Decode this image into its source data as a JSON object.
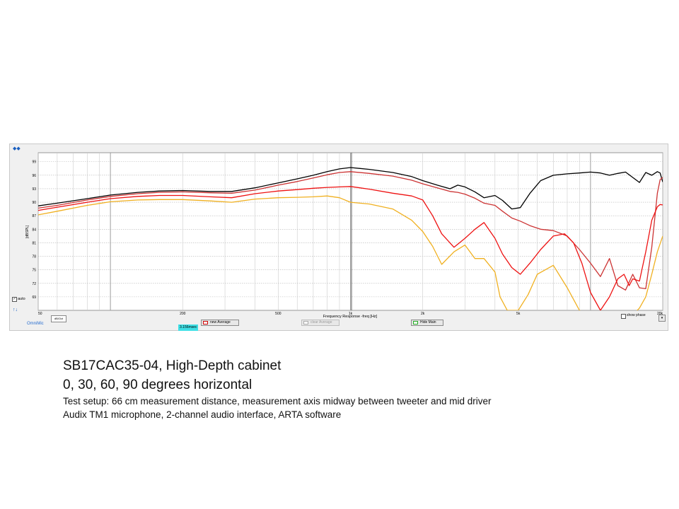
{
  "app": {
    "brand": "OmniMic",
    "auto_label": "auto",
    "auto_checked": true,
    "time_readout": "3.156msec",
    "buttons": {
      "new_average": "new Average",
      "clear_average": "clear Average",
      "hide_main": "Hide Main"
    },
    "show_phase_label": "show phase",
    "small_field_text": "dB/Oct"
  },
  "chart_data": {
    "type": "line",
    "title": "",
    "xlabel": "Frequency Response -freq [Hz]",
    "ylabel": "[dBSPL]",
    "x_scale": "log",
    "xlim": [
      50,
      20000
    ],
    "ylim": [
      66,
      101
    ],
    "x_ticks": [
      {
        "value": 50,
        "label": "50"
      },
      {
        "value": 200,
        "label": "200"
      },
      {
        "value": 500,
        "label": "500"
      },
      {
        "value": 1000,
        "label": "1k"
      },
      {
        "value": 2000,
        "label": "2k"
      },
      {
        "value": 5000,
        "label": "5k"
      },
      {
        "value": 20000,
        "label": "20k"
      }
    ],
    "y_ticks": [
      69,
      72,
      75,
      78,
      81,
      84,
      87,
      90,
      93,
      96,
      99
    ],
    "grid": true,
    "series": [
      {
        "name": "",
        "color": "#000000",
        "x": [
          50,
          60,
          80,
          100,
          130,
          160,
          200,
          260,
          320,
          400,
          500,
          600,
          700,
          800,
          900,
          1000,
          1200,
          1500,
          1800,
          2000,
          2300,
          2600,
          2800,
          3000,
          3300,
          3600,
          4000,
          4300,
          4700,
          5100,
          5600,
          6200,
          7000,
          8000,
          9000,
          10000,
          11000,
          12000,
          13000,
          14000,
          15000,
          16000,
          17000,
          18000,
          19000,
          19500,
          20000
        ],
        "y": [
          89.2,
          89.8,
          90.8,
          91.6,
          92.2,
          92.5,
          92.6,
          92.4,
          92.4,
          93.2,
          94.3,
          95.2,
          96.0,
          96.8,
          97.4,
          97.7,
          97.3,
          96.6,
          95.7,
          94.8,
          93.8,
          93.0,
          93.8,
          93.4,
          92.3,
          91.0,
          91.5,
          90.4,
          88.5,
          88.8,
          92.0,
          94.8,
          96.0,
          96.3,
          96.5,
          96.7,
          96.5,
          96.0,
          96.4,
          96.7,
          95.5,
          94.4,
          96.6,
          96.0,
          96.8,
          96.5,
          94.5
        ]
      },
      {
        "name": "",
        "color": "#cc3333",
        "x": [
          50,
          60,
          80,
          100,
          130,
          160,
          200,
          260,
          320,
          400,
          500,
          600,
          700,
          800,
          900,
          1000,
          1200,
          1500,
          1800,
          2000,
          2300,
          2600,
          2800,
          3000,
          3300,
          3600,
          4000,
          4300,
          4700,
          5100,
          5600,
          6200,
          7000,
          8000,
          9000,
          10000,
          11000,
          12000,
          13000,
          14000,
          15000,
          16000,
          17000,
          18000,
          19000,
          19500,
          20000
        ],
        "y": [
          88.7,
          89.3,
          90.5,
          91.3,
          91.9,
          92.2,
          92.3,
          92.1,
          92.0,
          92.7,
          93.8,
          94.6,
          95.4,
          96.1,
          96.6,
          96.8,
          96.4,
          95.8,
          94.9,
          94.1,
          93.2,
          92.4,
          92.2,
          91.8,
          90.9,
          89.8,
          89.3,
          88.0,
          86.5,
          85.8,
          84.8,
          84.0,
          83.7,
          82.5,
          79.5,
          76.5,
          73.5,
          77.5,
          71.5,
          70.5,
          74.0,
          71.0,
          70.8,
          80.0,
          92.0,
          95.0,
          95.5
        ]
      },
      {
        "name": "",
        "color": "#ee1111",
        "x": [
          50,
          60,
          80,
          100,
          130,
          160,
          200,
          260,
          320,
          400,
          500,
          600,
          700,
          800,
          900,
          1000,
          1200,
          1500,
          1800,
          2000,
          2200,
          2400,
          2700,
          3000,
          3300,
          3600,
          4000,
          4300,
          4700,
          5100,
          5600,
          6200,
          7000,
          7800,
          8500,
          9200,
          10000,
          11000,
          12000,
          13000,
          13800,
          14500,
          15000,
          16000,
          17000,
          18000,
          19000,
          19500,
          20000
        ],
        "y": [
          88.2,
          88.9,
          90.0,
          90.8,
          91.3,
          91.5,
          91.5,
          91.2,
          91.0,
          91.9,
          92.5,
          92.8,
          93.1,
          93.3,
          93.4,
          93.5,
          92.9,
          92.0,
          91.4,
          90.5,
          87.0,
          83.0,
          80.0,
          82.0,
          84.0,
          85.5,
          82.0,
          78.5,
          75.5,
          74.0,
          76.5,
          79.5,
          82.5,
          83.0,
          81.0,
          76.5,
          70.0,
          66.0,
          69.0,
          73.0,
          74.0,
          71.5,
          73.0,
          72.5,
          79.0,
          86.0,
          89.0,
          89.5,
          89.4
        ]
      },
      {
        "name": "",
        "color": "#f0b020",
        "x": [
          50,
          60,
          80,
          100,
          130,
          160,
          200,
          260,
          320,
          400,
          500,
          600,
          700,
          800,
          900,
          1000,
          1200,
          1500,
          1800,
          2000,
          2200,
          2400,
          2700,
          3000,
          3300,
          3600,
          4000,
          4200,
          4500,
          5000,
          5500,
          6000,
          7000,
          8000,
          9000,
          10000,
          11000,
          12000,
          13000,
          14000,
          15000,
          16000,
          17000,
          18000,
          19000,
          20000
        ],
        "y": [
          87.2,
          88.0,
          89.3,
          90.1,
          90.5,
          90.6,
          90.6,
          90.3,
          90.0,
          90.7,
          91.0,
          91.1,
          91.2,
          91.4,
          91.0,
          90.0,
          89.6,
          88.5,
          86.0,
          83.5,
          80.2,
          76.2,
          79.0,
          80.5,
          77.5,
          77.5,
          74.5,
          69.0,
          66.0,
          66.0,
          69.5,
          74.0,
          76.0,
          71.0,
          66.0,
          65.0,
          65.0,
          65.0,
          65.0,
          65.0,
          65.0,
          66.5,
          69.0,
          74.0,
          79.0,
          82.5
        ]
      }
    ]
  },
  "caption": {
    "title": "SB17CAC35-04, High-Depth cabinet",
    "subtitle": "0, 30, 60, 90 degrees horizontal",
    "line1": "Test setup:  66 cm measurement distance, measurement  axis midway between tweeter and mid driver",
    "line2": "Audix TM1 microphone,  2-channel audio interface, ARTA software"
  }
}
